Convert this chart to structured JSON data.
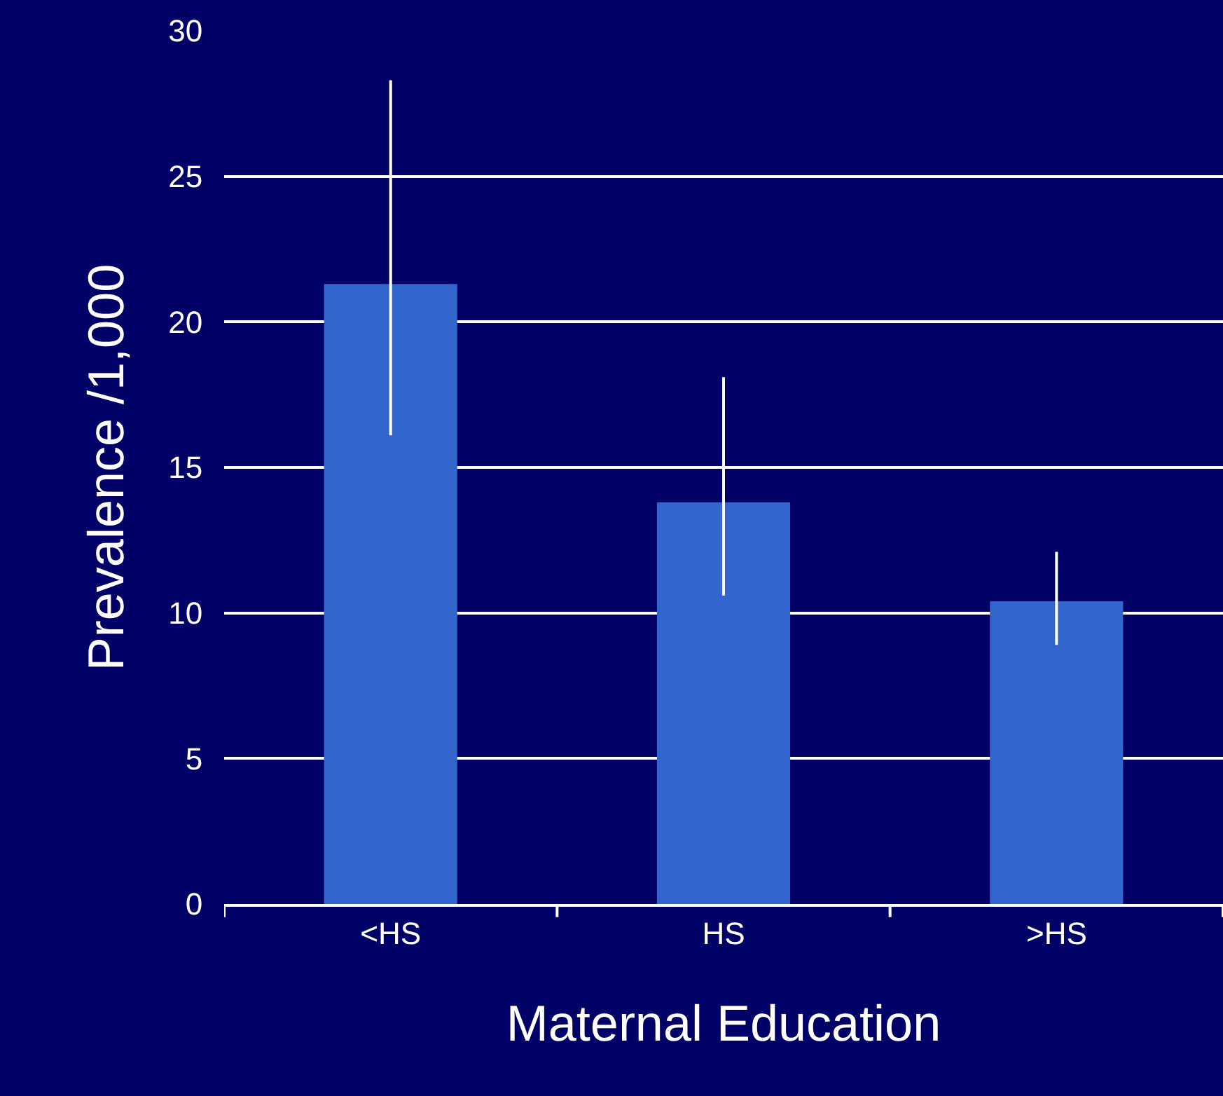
{
  "chart_data": {
    "type": "bar",
    "xlabel": "Maternal Education",
    "ylabel": "Prevalence /1,000",
    "categories": [
      "<HS",
      "HS",
      ">HS"
    ],
    "values": [
      21.3,
      13.8,
      10.4
    ],
    "errors": [
      [
        16.1,
        28.3
      ],
      [
        10.6,
        18.1
      ],
      [
        8.9,
        12.1
      ]
    ],
    "color": "#3366cc",
    "ylim": [
      0,
      30
    ],
    "yticks": [
      0,
      5,
      10,
      15,
      20,
      25,
      30
    ],
    "grid": "y"
  }
}
